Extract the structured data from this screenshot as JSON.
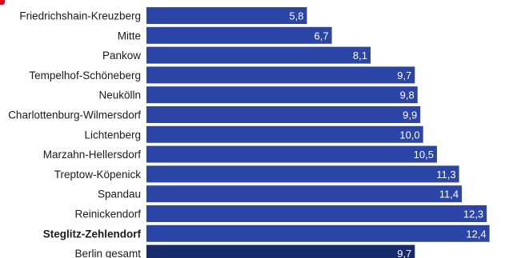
{
  "chart_data": {
    "type": "bar",
    "orientation": "horizontal",
    "categories": [
      "Friedrichshain-Kreuzberg",
      "Mitte",
      "Pankow",
      "Tempelhof-Schöneberg",
      "Neukölln",
      "Charlottenburg-Wilmersdorf",
      "Lichtenberg",
      "Marzahn-Hellersdorf",
      "Treptow-Köpenick",
      "Spandau",
      "Reinickendorf",
      "Steglitz-Zehlendorf",
      "Berlin gesamt"
    ],
    "values": [
      5.8,
      6.7,
      8.1,
      9.7,
      9.8,
      9.9,
      10.0,
      10.5,
      11.3,
      11.4,
      12.3,
      12.4,
      9.7
    ],
    "value_labels": [
      "5,8",
      "6,7",
      "8,1",
      "9,7",
      "9,8",
      "9,9",
      "10,0",
      "10,5",
      "11,3",
      "11,4",
      "12,3",
      "12,4",
      "9,7"
    ],
    "highlighted_category": "Steglitz-Zehlendorf",
    "total_category": "Berlin gesamt",
    "xlim": [
      0,
      12.7
    ],
    "grid": false,
    "colors": {
      "bar": "#2b45a6",
      "total_bar": "#172a6b",
      "accent": "#e30613"
    }
  }
}
